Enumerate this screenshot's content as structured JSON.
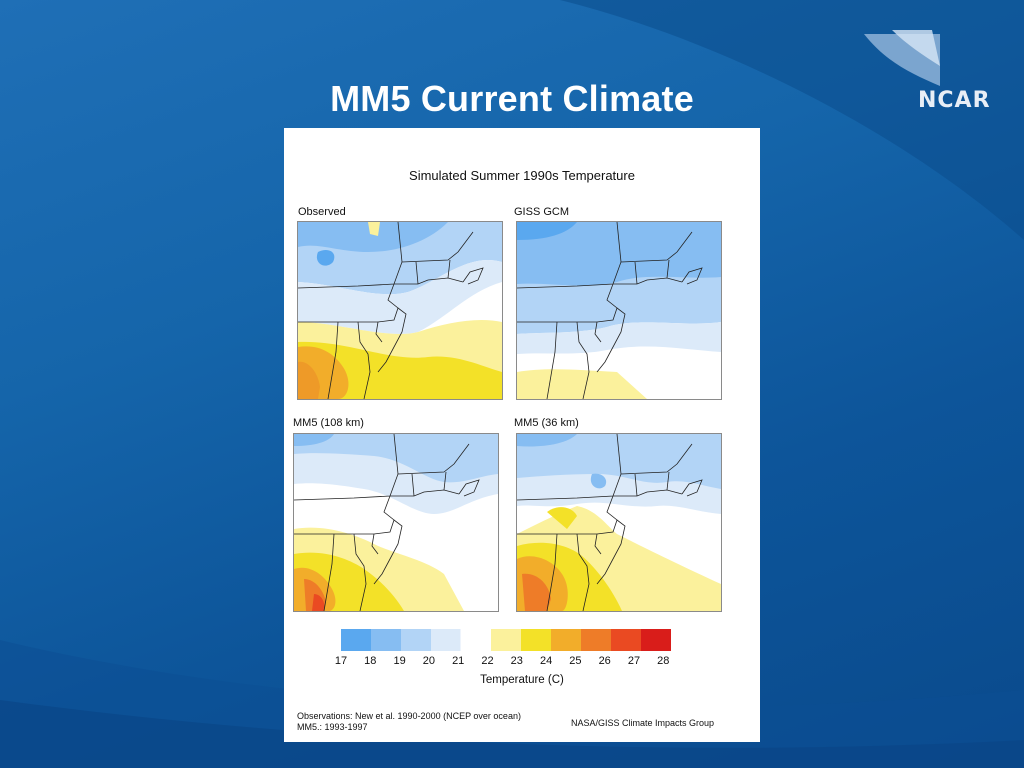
{
  "slide": {
    "title": "MM5 Current Climate",
    "logo": "NCAR"
  },
  "figure": {
    "title": "Simulated Summer 1990s Temperature",
    "maps": [
      {
        "label": "Observed"
      },
      {
        "label": "GISS GCM"
      },
      {
        "label": "MM5 (108 km)"
      },
      {
        "label": "MM5 (36 km)"
      }
    ],
    "legend": {
      "title": "Temperature (C)",
      "ticks": [
        "17",
        "18",
        "19",
        "20",
        "21",
        "22",
        "23",
        "24",
        "25",
        "26",
        "27",
        "28"
      ],
      "colors": [
        "#5aa8ef",
        "#86bdf2",
        "#b2d4f6",
        "#dceaf9",
        "#ffffff",
        "#fbf19c",
        "#f3e128",
        "#f2ad2a",
        "#ee7c28",
        "#ea4a22",
        "#d91d1a"
      ]
    },
    "footnote_left": [
      "Observations: New et al. 1990-2000 (NCEP over ocean)",
      "MM5.: 1993-1997"
    ],
    "footnote_right": "NASA/GISS Climate Impacts Group"
  }
}
